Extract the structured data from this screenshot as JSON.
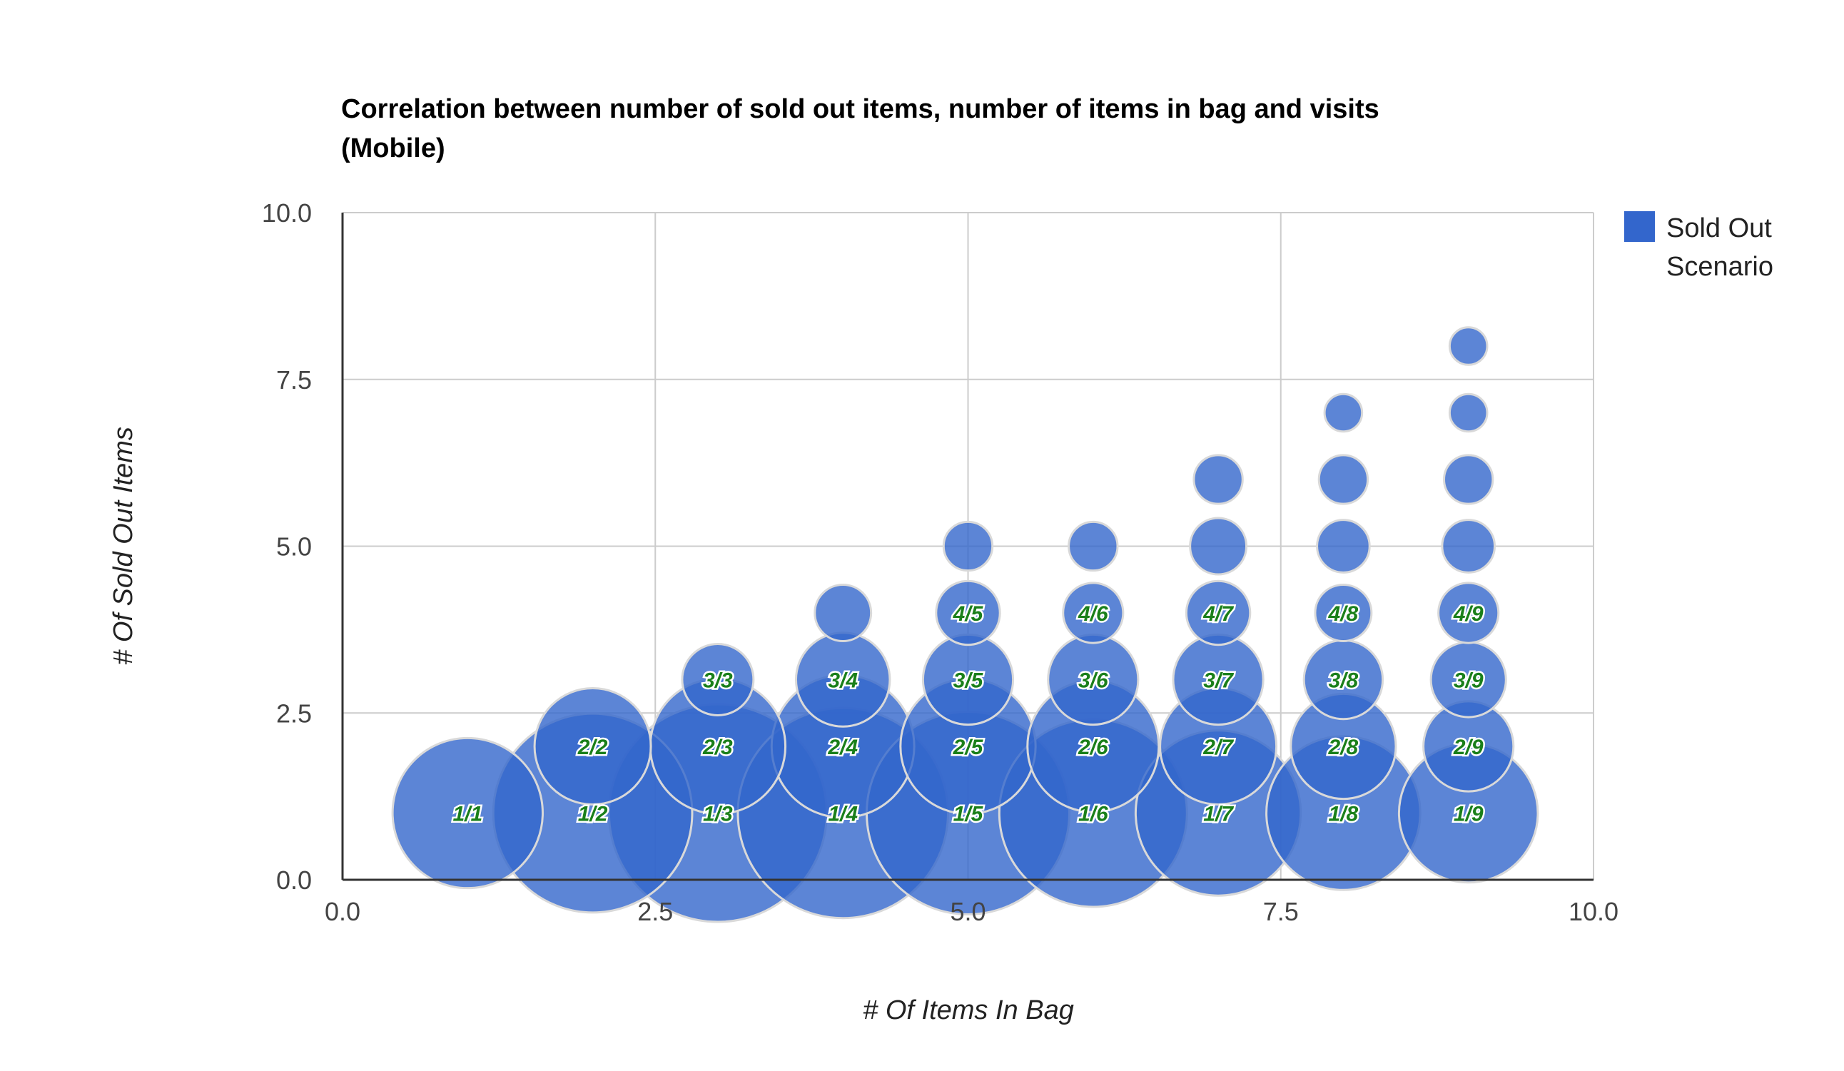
{
  "chart_data": {
    "type": "bubble",
    "title_lines": [
      "Correlation between number of sold out items, number of items in bag and visits",
      "(Mobile)"
    ],
    "xlabel": "# Of Items In Bag",
    "ylabel": "# Of Sold Out Items",
    "xlim": [
      0,
      10
    ],
    "ylim": [
      0,
      10
    ],
    "x_ticks": [
      "0.0",
      "2.5",
      "5.0",
      "7.5",
      "10.0"
    ],
    "y_ticks": [
      "0.0",
      "2.5",
      "5.0",
      "7.5",
      "10.0"
    ],
    "grid": true,
    "legend": {
      "position": "right",
      "entries": [
        "Sold Out",
        "Scenario"
      ],
      "color": "#3366cc"
    },
    "series": [
      {
        "color": "#3366cc",
        "points": [
          {
            "x": 1,
            "y": 1,
            "size": 40,
            "label": "1/1"
          },
          {
            "x": 2,
            "y": 1,
            "size": 53,
            "label": "1/2"
          },
          {
            "x": 2,
            "y": 2,
            "size": 31,
            "label": "2/2"
          },
          {
            "x": 3,
            "y": 1,
            "size": 58,
            "label": "1/3"
          },
          {
            "x": 3,
            "y": 2,
            "size": 36,
            "label": "2/3"
          },
          {
            "x": 3,
            "y": 3,
            "size": 19,
            "label": "3/3"
          },
          {
            "x": 4,
            "y": 1,
            "size": 56,
            "label": "1/4"
          },
          {
            "x": 4,
            "y": 2,
            "size": 38,
            "label": "2/4"
          },
          {
            "x": 4,
            "y": 3,
            "size": 25,
            "label": "3/4"
          },
          {
            "x": 4,
            "y": 4,
            "size": 15,
            "label": ""
          },
          {
            "x": 5,
            "y": 1,
            "size": 54,
            "label": "1/5"
          },
          {
            "x": 5,
            "y": 2,
            "size": 36,
            "label": "2/5"
          },
          {
            "x": 5,
            "y": 3,
            "size": 24,
            "label": "3/5"
          },
          {
            "x": 5,
            "y": 4,
            "size": 17,
            "label": "4/5"
          },
          {
            "x": 5,
            "y": 5,
            "size": 13,
            "label": ""
          },
          {
            "x": 6,
            "y": 1,
            "size": 50,
            "label": "1/6"
          },
          {
            "x": 6,
            "y": 2,
            "size": 35,
            "label": "2/6"
          },
          {
            "x": 6,
            "y": 3,
            "size": 24,
            "label": "3/6"
          },
          {
            "x": 6,
            "y": 4,
            "size": 16,
            "label": "4/6"
          },
          {
            "x": 6,
            "y": 5,
            "size": 13,
            "label": ""
          },
          {
            "x": 7,
            "y": 1,
            "size": 44,
            "label": "1/7"
          },
          {
            "x": 7,
            "y": 2,
            "size": 31,
            "label": "2/7"
          },
          {
            "x": 7,
            "y": 3,
            "size": 24,
            "label": "3/7"
          },
          {
            "x": 7,
            "y": 4,
            "size": 17,
            "label": "4/7"
          },
          {
            "x": 7,
            "y": 5,
            "size": 15,
            "label": ""
          },
          {
            "x": 7,
            "y": 6,
            "size": 13,
            "label": ""
          },
          {
            "x": 8,
            "y": 1,
            "size": 41,
            "label": "1/8"
          },
          {
            "x": 8,
            "y": 2,
            "size": 28,
            "label": "2/8"
          },
          {
            "x": 8,
            "y": 3,
            "size": 21,
            "label": "3/8"
          },
          {
            "x": 8,
            "y": 4,
            "size": 15,
            "label": "4/8"
          },
          {
            "x": 8,
            "y": 5,
            "size": 14,
            "label": ""
          },
          {
            "x": 8,
            "y": 6,
            "size": 13,
            "label": ""
          },
          {
            "x": 8,
            "y": 7,
            "size": 10,
            "label": ""
          },
          {
            "x": 9,
            "y": 1,
            "size": 37,
            "label": "1/9"
          },
          {
            "x": 9,
            "y": 2,
            "size": 24,
            "label": "2/9"
          },
          {
            "x": 9,
            "y": 3,
            "size": 20,
            "label": "3/9"
          },
          {
            "x": 9,
            "y": 4,
            "size": 16,
            "label": "4/9"
          },
          {
            "x": 9,
            "y": 5,
            "size": 14,
            "label": ""
          },
          {
            "x": 9,
            "y": 6,
            "size": 13,
            "label": ""
          },
          {
            "x": 9,
            "y": 7,
            "size": 10,
            "label": ""
          },
          {
            "x": 9,
            "y": 8,
            "size": 10,
            "label": ""
          }
        ]
      }
    ]
  }
}
